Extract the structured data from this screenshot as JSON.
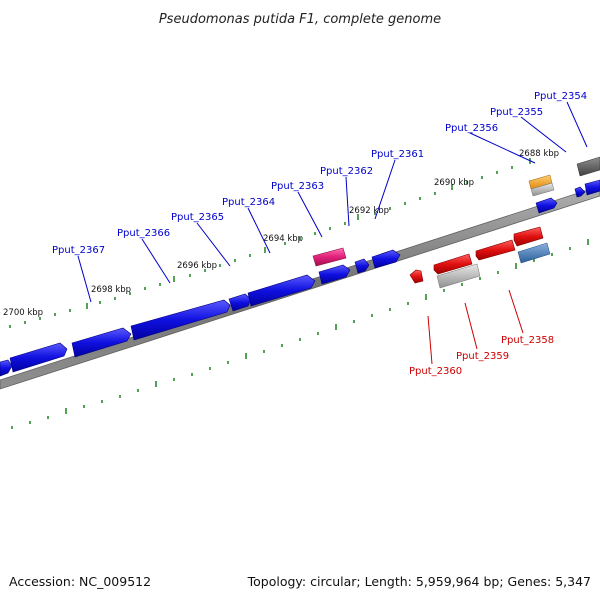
{
  "title": "Pseudomonas putida F1, complete genome",
  "footer": {
    "accession": "Accession: NC_009512",
    "summary": "Topology: circular; Length: 5,959,964 bp; Genes: 5,347"
  },
  "colors": {
    "forward_gene": "#1010e0",
    "reverse_gene": "#e01010",
    "label_forward": "#0000cc",
    "label_reverse": "#cc0000",
    "backbone": "#808080",
    "tick": "#2a8a2a",
    "highlight": "#e0207a",
    "feature_orange": "#f0a020",
    "feature_steel": "#4a7fb8",
    "feature_gray": "#b0b0b0",
    "feature_dark": "#606060"
  },
  "scale_labels": [
    "2688 kbp",
    "2690 kbp",
    "2692 kbp",
    "2694 kbp",
    "2696 kbp",
    "2698 kbp",
    "2700 kbp"
  ],
  "gene_labels": {
    "forward": [
      "Pput_2354",
      "Pput_2355",
      "Pput_2356",
      "Pput_2361",
      "Pput_2362",
      "Pput_2363",
      "Pput_2364",
      "Pput_2365",
      "Pput_2366",
      "Pput_2367"
    ],
    "reverse": [
      "Pput_2358",
      "Pput_2359",
      "Pput_2360"
    ]
  }
}
